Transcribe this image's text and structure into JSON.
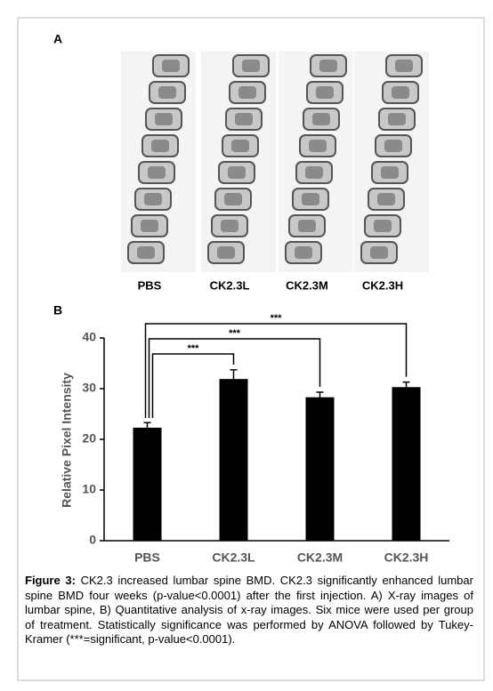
{
  "panel_a": {
    "label": "A",
    "image_labels": [
      "PBS",
      "CK2.3L",
      "CK2.3M",
      "CK2.3H"
    ]
  },
  "panel_b": {
    "label": "B"
  },
  "chart_data": {
    "type": "bar",
    "ylabel": "Relative Pixel Intensity",
    "categories": [
      "PBS",
      "CK2.3L",
      "CK2.3M",
      "CK2.3H"
    ],
    "values": [
      22.3,
      31.9,
      28.3,
      30.3
    ],
    "errors": [
      1.0,
      1.8,
      1.0,
      1.0
    ],
    "color": "#000000",
    "ylim": [
      0,
      40
    ],
    "yticks": [
      0,
      10,
      20,
      30,
      40
    ],
    "comparisons": [
      {
        "groups": [
          "PBS",
          "CK2.3L"
        ],
        "label": "***"
      },
      {
        "groups": [
          "PBS",
          "CK2.3M"
        ],
        "label": "***"
      },
      {
        "groups": [
          "PBS",
          "CK2.3H"
        ],
        "label": "***"
      }
    ]
  },
  "caption": {
    "label": "Figure 3:",
    "text": "CK2.3 increased lumbar spine BMD. CK2.3 significantly enhanced lumbar spine BMD four weeks (p-value<0.0001) after the first injection. A) X-ray images of lumbar spine, B) Quantitative analysis of x-ray images. Six mice were used per group of treatment. Statistically significance was performed by ANOVA followed by Tukey-Kramer (***=significant, p-value<0.0001)."
  }
}
